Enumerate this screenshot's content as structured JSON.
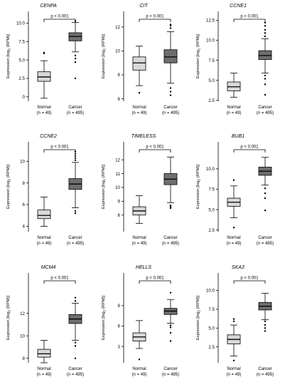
{
  "figure": {
    "y_axis_label": "Expression [log",
    "y_axis_label_sub": "2",
    "y_axis_label_tail": "(RPM)]",
    "groups": [
      {
        "label": "Normal",
        "n": "(n = 49)"
      },
      {
        "label": "Cancer",
        "n": "(n = 495)"
      }
    ]
  },
  "chart_data": [
    {
      "type": "box",
      "title": "CENPA",
      "pvalue": "p < 0.001",
      "ylim": [
        -0.6,
        11.6
      ],
      "yticks": [
        0,
        2.5,
        5,
        7.5,
        10
      ],
      "ytick_labels": [
        "0",
        "2.5",
        "5.0",
        "7.5",
        "10.0"
      ],
      "series": [
        {
          "name": "Normal",
          "min": -0.2,
          "q1": 2.1,
          "median": 2.7,
          "q3": 3.4,
          "max": 4.9,
          "outliers": [
            5.9,
            6.0
          ],
          "color": "#d9d9d9"
        },
        {
          "name": "Cancer",
          "min": 6.1,
          "q1": 7.6,
          "median": 8.2,
          "q3": 8.7,
          "max": 10.1,
          "outliers": [
            5.6,
            5.2,
            4.7,
            2.5,
            10.3
          ],
          "color": "#6e6e6e"
        }
      ]
    },
    {
      "type": "box",
      "title": "CIT",
      "pvalue": "p < 0.001",
      "ylim": [
        5.8,
        13.3
      ],
      "yticks": [
        6,
        8,
        10,
        12
      ],
      "ytick_labels": [
        "6",
        "8",
        "10",
        "12"
      ],
      "series": [
        {
          "name": "Normal",
          "min": 7.1,
          "q1": 8.4,
          "median": 9.0,
          "q3": 9.5,
          "max": 10.4,
          "outliers": [
            6.5
          ],
          "color": "#d9d9d9"
        },
        {
          "name": "Cancer",
          "min": 7.3,
          "q1": 9.0,
          "median": 9.5,
          "q3": 10.1,
          "max": 11.6,
          "outliers": [
            6.9,
            6.6,
            6.3,
            11.9,
            12.1,
            12.2
          ],
          "color": "#6e6e6e"
        }
      ]
    },
    {
      "type": "box",
      "title": "CCNE1",
      "pvalue": "p < 0.001",
      "ylim": [
        2.4,
        13.6
      ],
      "yticks": [
        2.5,
        5,
        7.5,
        10,
        12.5
      ],
      "ytick_labels": [
        "2.5",
        "5.0",
        "7.5",
        "10.0",
        "12.5"
      ],
      "series": [
        {
          "name": "Normal",
          "min": 2.9,
          "q1": 3.7,
          "median": 4.2,
          "q3": 4.8,
          "max": 5.9,
          "outliers": [],
          "color": "#d9d9d9"
        },
        {
          "name": "Cancer",
          "min": 5.9,
          "q1": 7.6,
          "median": 8.1,
          "q3": 8.7,
          "max": 10.2,
          "outliers": [
            5.6,
            5.2,
            4.5,
            3.2,
            10.5,
            10.9,
            11.3,
            11.8,
            12.2
          ],
          "color": "#6e6e6e"
        }
      ]
    },
    {
      "type": "box",
      "title": "CCNE2",
      "pvalue": "p < 0.001",
      "ylim": [
        3.5,
        11.8
      ],
      "yticks": [
        4,
        6,
        8,
        10
      ],
      "ytick_labels": [
        "4",
        "6",
        "8",
        "10"
      ],
      "series": [
        {
          "name": "Normal",
          "min": 4.0,
          "q1": 4.7,
          "median": 5.0,
          "q3": 5.5,
          "max": 6.7,
          "outliers": [],
          "color": "#d9d9d9"
        },
        {
          "name": "Cancer",
          "min": 5.7,
          "q1": 7.4,
          "median": 7.9,
          "q3": 8.4,
          "max": 9.9,
          "outliers": [
            5.4,
            5.2,
            10.1,
            10.3,
            10.5,
            10.7,
            10.9
          ],
          "color": "#6e6e6e"
        }
      ]
    },
    {
      "type": "box",
      "title": "TIMELESS",
      "pvalue": "p < 0.001",
      "ylim": [
        6.8,
        13.3
      ],
      "yticks": [
        8,
        9,
        10,
        11,
        12
      ],
      "ytick_labels": [
        "8",
        "9",
        "10",
        "11",
        "12"
      ],
      "series": [
        {
          "name": "Normal",
          "min": 7.4,
          "q1": 8.0,
          "median": 8.3,
          "q3": 8.6,
          "max": 9.4,
          "outliers": [],
          "color": "#d9d9d9"
        },
        {
          "name": "Cancer",
          "min": 8.9,
          "q1": 10.2,
          "median": 10.6,
          "q3": 11.0,
          "max": 12.2,
          "outliers": [
            8.7,
            8.6,
            8.5
          ],
          "color": "#6e6e6e"
        }
      ]
    },
    {
      "type": "box",
      "title": "BUB1",
      "pvalue": "p < 0.001",
      "ylim": [
        2.3,
        13.3
      ],
      "yticks": [
        2.5,
        5,
        7.5,
        10
      ],
      "ytick_labels": [
        "2.5",
        "5.0",
        "7.5",
        "10.0"
      ],
      "series": [
        {
          "name": "Normal",
          "min": 4.0,
          "q1": 5.4,
          "median": 5.9,
          "q3": 6.4,
          "max": 7.9,
          "outliers": [
            8.6,
            2.8
          ],
          "color": "#d9d9d9"
        },
        {
          "name": "Cancer",
          "min": 8.0,
          "q1": 9.2,
          "median": 9.7,
          "q3": 10.2,
          "max": 11.4,
          "outliers": [
            7.6,
            7.0,
            6.4,
            4.9
          ],
          "color": "#6e6e6e"
        }
      ]
    },
    {
      "type": "box",
      "title": "MCM4",
      "pvalue": "p < 0.001",
      "ylim": [
        7.6,
        15.6
      ],
      "yticks": [
        8,
        10,
        12
      ],
      "ytick_labels": [
        "8",
        "10",
        "12"
      ],
      "series": [
        {
          "name": "Normal",
          "min": 7.6,
          "q1": 8.1,
          "median": 8.4,
          "q3": 8.8,
          "max": 9.6,
          "outliers": [],
          "color": "#d9d9d9"
        },
        {
          "name": "Cancer",
          "min": 9.6,
          "q1": 11.1,
          "median": 11.5,
          "q3": 11.9,
          "max": 12.9,
          "outliers": [
            9.4,
            9.1,
            8.0,
            13.1,
            13.4
          ],
          "color": "#6e6e6e"
        }
      ]
    },
    {
      "type": "box",
      "title": "HELLS",
      "pvalue": "p < 0.001",
      "ylim": [
        0.6,
        13.8
      ],
      "yticks": [
        3,
        6,
        9
      ],
      "ytick_labels": [
        "3",
        "6",
        "9"
      ],
      "series": [
        {
          "name": "Normal",
          "min": 2.7,
          "q1": 3.8,
          "median": 4.4,
          "q3": 5.0,
          "max": 6.8,
          "outliers": [
            1.1
          ],
          "color": "#d9d9d9"
        },
        {
          "name": "Cancer",
          "min": 6.4,
          "q1": 7.7,
          "median": 8.2,
          "q3": 8.6,
          "max": 9.9,
          "outliers": [
            6.1,
            5.8,
            5.0,
            3.8,
            10.9
          ],
          "color": "#6e6e6e"
        }
      ]
    },
    {
      "type": "box",
      "title": "SKA3",
      "pvalue": "p < 0.001",
      "ylim": [
        0.4,
        12.3
      ],
      "yticks": [
        2.5,
        5,
        7.5,
        10
      ],
      "ytick_labels": [
        "2.5",
        "5.0",
        "7.5",
        "10.0"
      ],
      "series": [
        {
          "name": "Normal",
          "min": 1.3,
          "q1": 2.9,
          "median": 3.5,
          "q3": 4.1,
          "max": 5.4,
          "outliers": [
            5.9,
            6.2,
            0.7
          ],
          "color": "#d9d9d9"
        },
        {
          "name": "Cancer",
          "min": 6.1,
          "q1": 7.4,
          "median": 7.9,
          "q3": 8.4,
          "max": 9.6,
          "outliers": [
            5.9,
            5.4,
            5.0,
            4.6
          ],
          "color": "#6e6e6e"
        }
      ]
    }
  ]
}
